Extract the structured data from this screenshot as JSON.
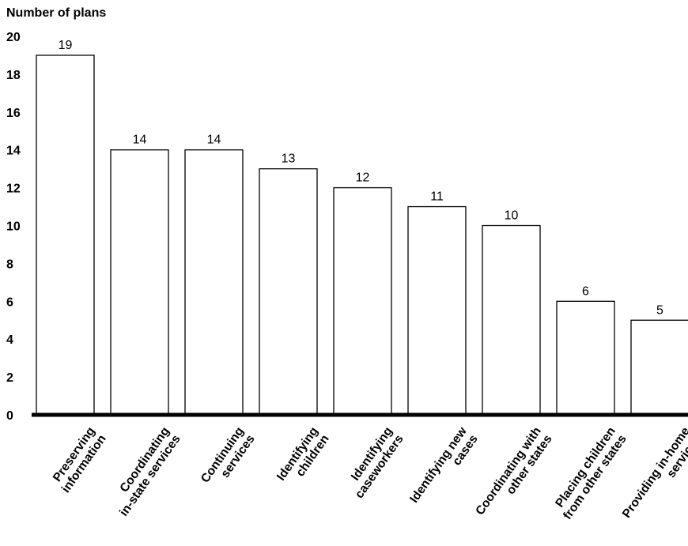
{
  "chart_data": {
    "type": "bar",
    "ylabel": "Number of plans",
    "xlabel": "",
    "ylim": [
      0,
      20
    ],
    "yticks": [
      0,
      2,
      4,
      6,
      8,
      10,
      12,
      14,
      16,
      18,
      20
    ],
    "categories": [
      [
        "Preserving",
        "information"
      ],
      [
        "Coordinating",
        "in-state services"
      ],
      [
        "Continuing",
        "services"
      ],
      [
        "Identifying",
        "children"
      ],
      [
        "Identifying",
        "caseworkers"
      ],
      [
        "Identifying new",
        "cases"
      ],
      [
        "Coordinating with",
        "other states"
      ],
      [
        "Placing children",
        "from other states"
      ],
      [
        "Providing in-home",
        "services"
      ]
    ],
    "values": [
      19,
      14,
      14,
      13,
      12,
      11,
      10,
      6,
      5
    ],
    "grid": false,
    "colors": {
      "bar_fill": "#ffffff",
      "bar_stroke": "#000000",
      "axis": "#000000"
    }
  }
}
